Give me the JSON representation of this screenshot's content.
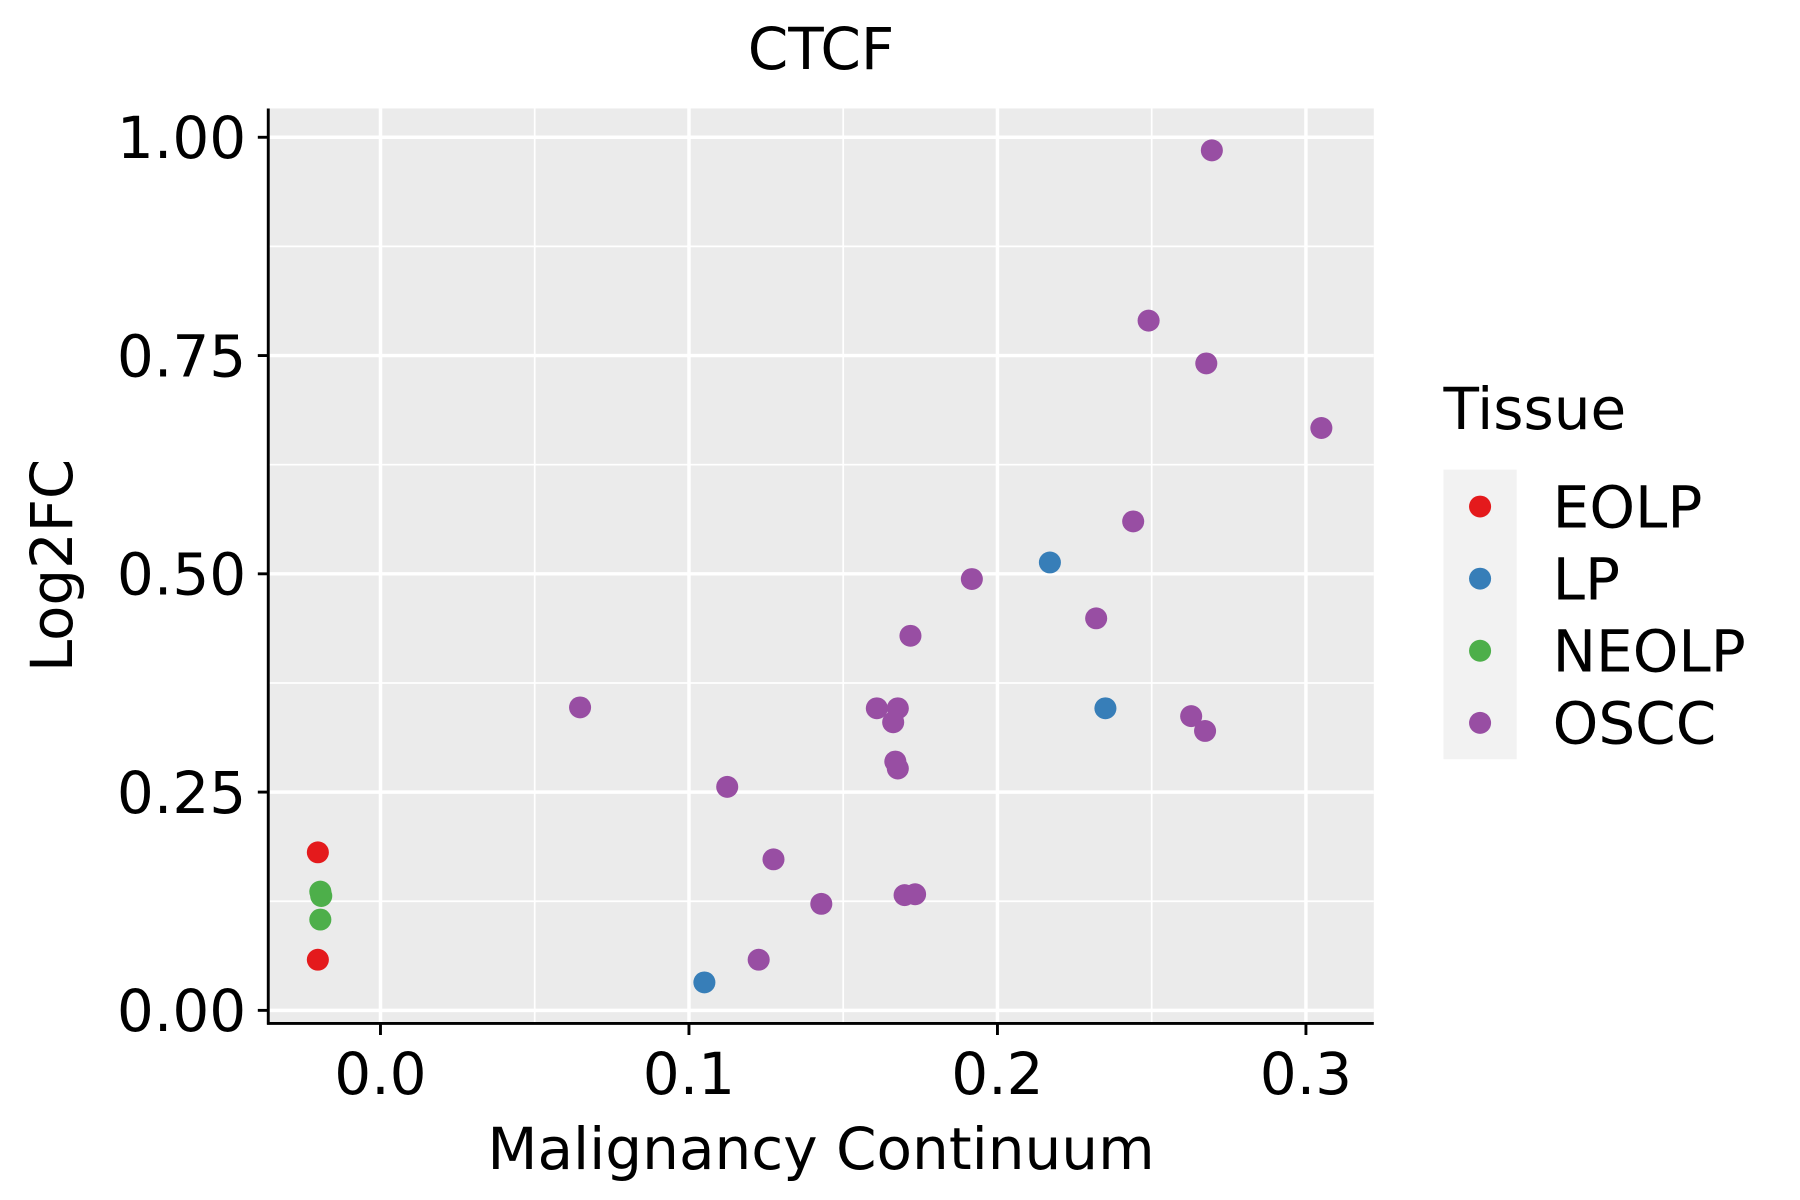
{
  "chart_data": {
    "type": "scatter",
    "title": "CTCF",
    "xlabel": "Malignancy Continuum",
    "ylabel": "Log2FC",
    "xlim": [
      -0.036,
      0.322
    ],
    "ylim": [
      -0.015,
      1.033
    ],
    "xticks": [
      0.0,
      0.1,
      0.2,
      0.3
    ],
    "xtick_labels": [
      "0.0",
      "0.1",
      "0.2",
      "0.3"
    ],
    "yticks": [
      0.0,
      0.25,
      0.5,
      0.75,
      1.0
    ],
    "ytick_labels": [
      "0.00",
      "0.25",
      "0.50",
      "0.75",
      "1.00"
    ],
    "grid": true,
    "legend": {
      "title": "Tissue",
      "placement": "right"
    },
    "series": [
      {
        "name": "EOLP",
        "color": "#E41A1C",
        "points": [
          [
            -0.0203,
            0.181
          ],
          [
            -0.0203,
            0.058
          ]
        ]
      },
      {
        "name": "LP",
        "color": "#377EB8",
        "points": [
          [
            0.105,
            0.032
          ],
          [
            0.217,
            0.513
          ],
          [
            0.235,
            0.346
          ]
        ]
      },
      {
        "name": "NEOLP",
        "color": "#4DAF4A",
        "points": [
          [
            -0.0195,
            0.136
          ],
          [
            -0.0192,
            0.131
          ],
          [
            -0.0195,
            0.104
          ]
        ]
      },
      {
        "name": "OSCC",
        "color": "#984EA3",
        "points": [
          [
            0.2695,
            0.985
          ],
          [
            0.249,
            0.79
          ],
          [
            0.2677,
            0.741
          ],
          [
            0.305,
            0.667
          ],
          [
            0.244,
            0.56
          ],
          [
            0.1917,
            0.494
          ],
          [
            0.232,
            0.449
          ],
          [
            0.1718,
            0.429
          ],
          [
            0.0647,
            0.347
          ],
          [
            0.1609,
            0.346
          ],
          [
            0.1677,
            0.346
          ],
          [
            0.1662,
            0.33
          ],
          [
            0.2628,
            0.337
          ],
          [
            0.2673,
            0.32
          ],
          [
            0.1669,
            0.285
          ],
          [
            0.1677,
            0.277
          ],
          [
            0.1124,
            0.256
          ],
          [
            0.1274,
            0.173
          ],
          [
            0.1429,
            0.122
          ],
          [
            0.1699,
            0.132
          ],
          [
            0.1733,
            0.133
          ],
          [
            0.1226,
            0.058
          ]
        ]
      }
    ]
  }
}
